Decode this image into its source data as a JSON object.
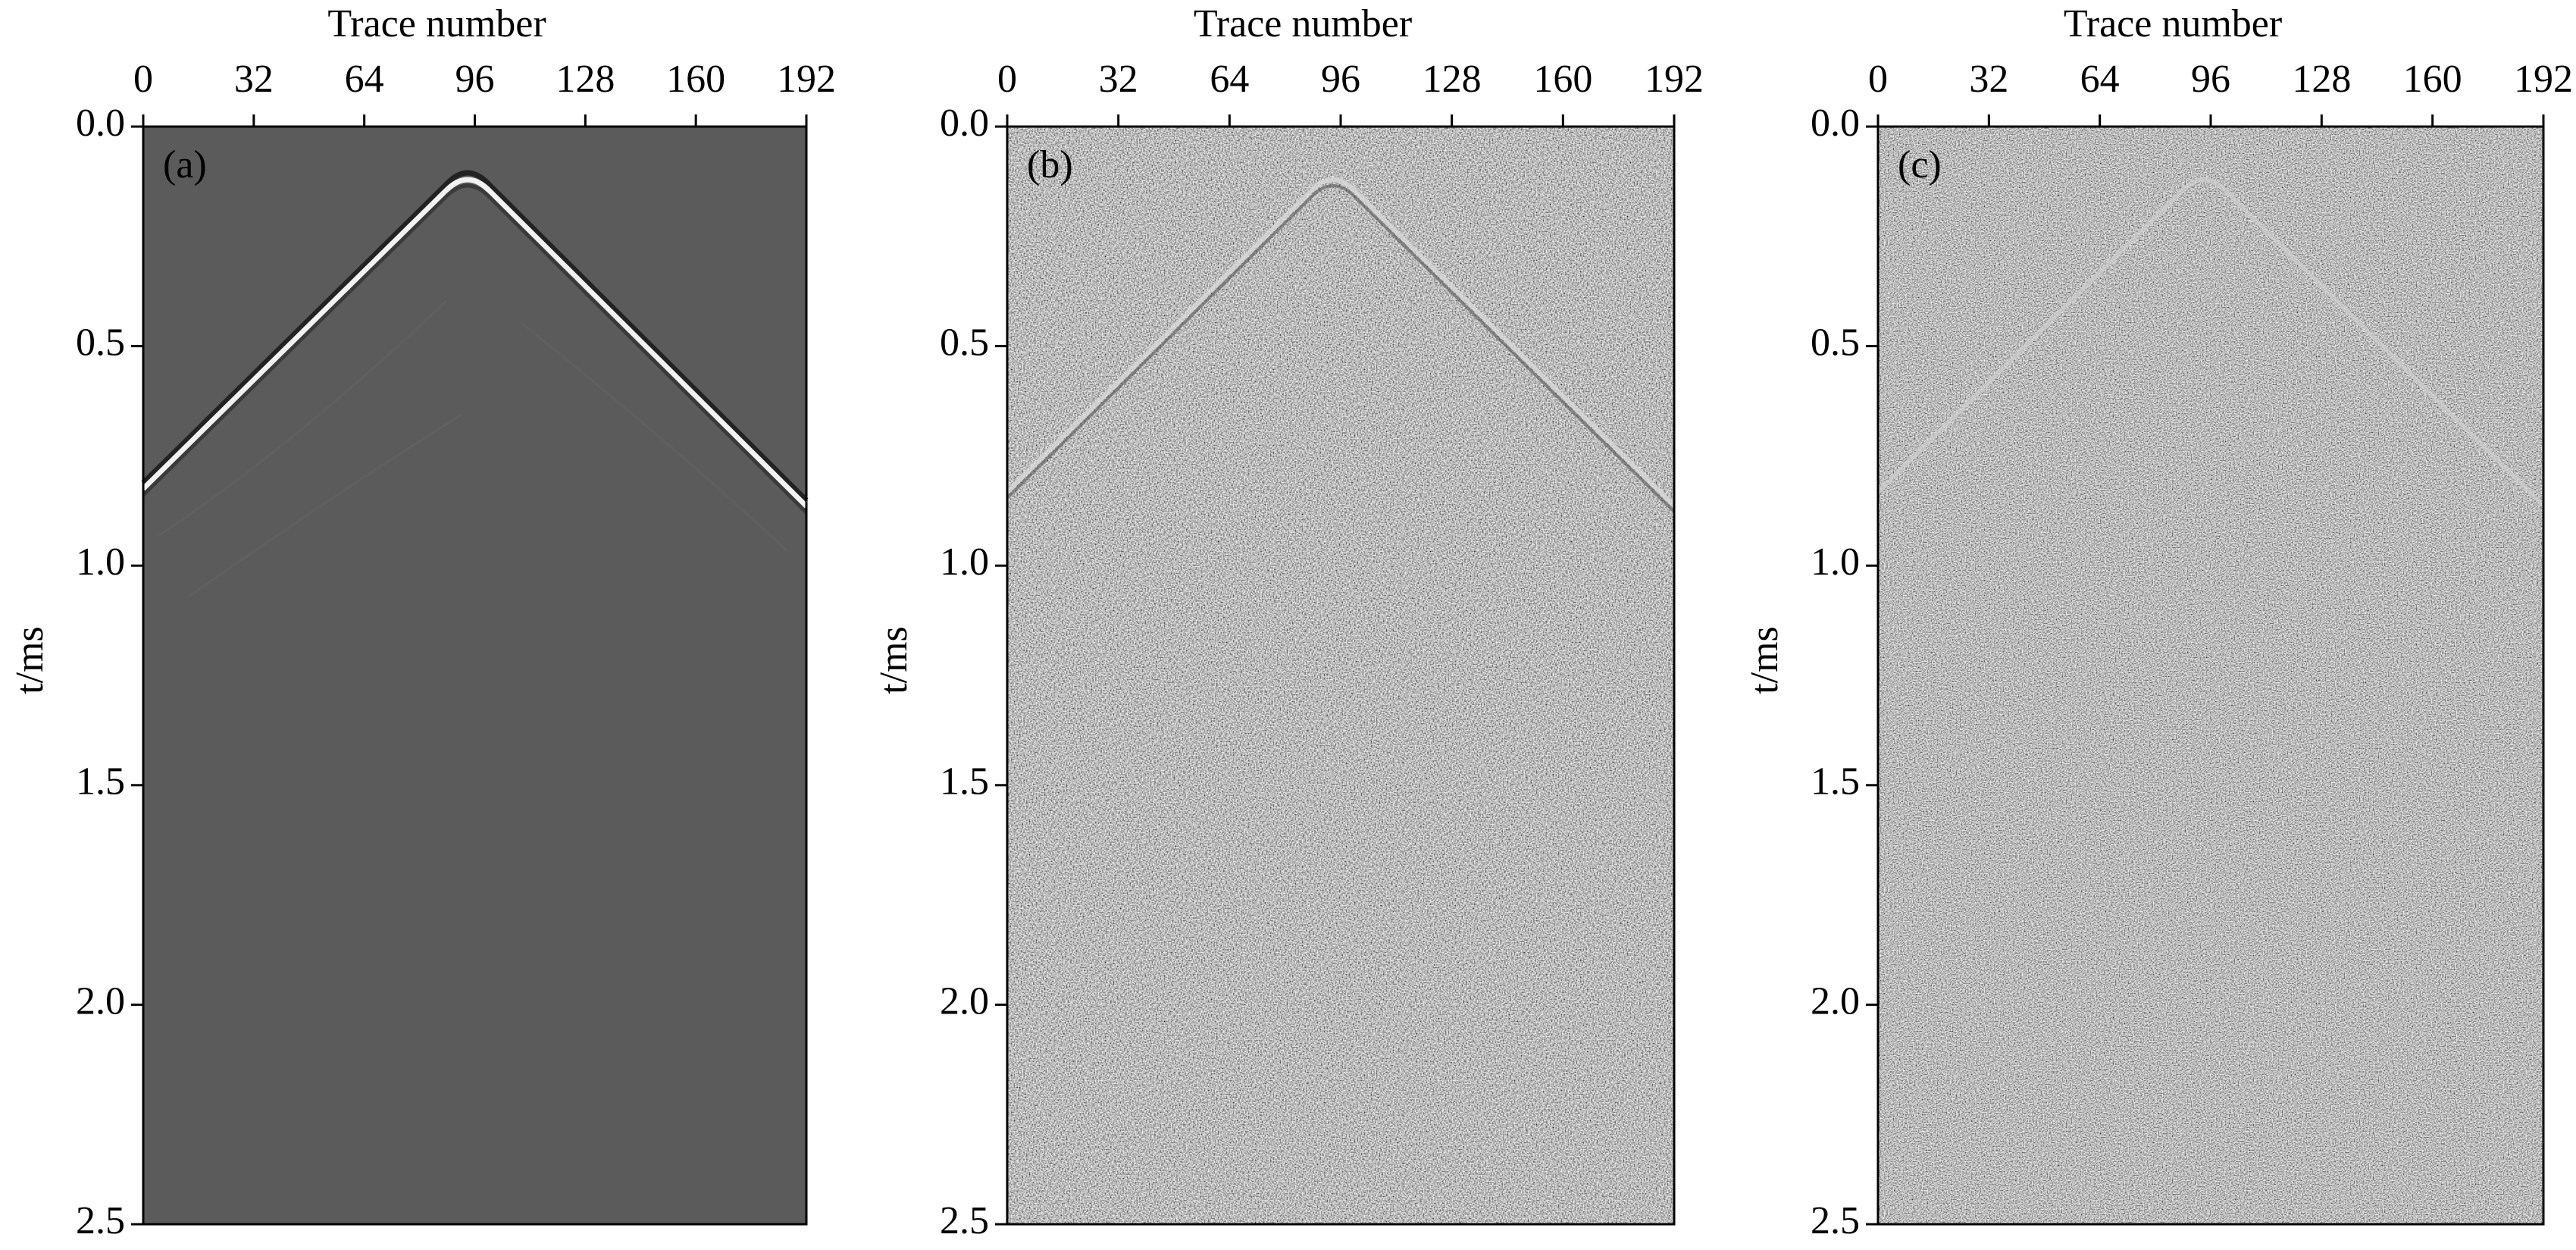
{
  "chart_data": [
    {
      "type": "heatmap",
      "annotation": "(a)",
      "x_label": "Trace number",
      "y_label": "t/ms",
      "xlim": [
        0,
        192
      ],
      "xticks": [
        0,
        32,
        64,
        96,
        128,
        160,
        192
      ],
      "ylim": [
        0,
        2.5
      ],
      "yticks": [
        {
          "value": 0,
          "label": "0.0"
        },
        0.5,
        {
          "value": 1,
          "label": "1.0"
        },
        1.5,
        {
          "value": 2,
          "label": "2.0"
        },
        2.5
      ]
    },
    {
      "type": "heatmap",
      "annotation": "(b)",
      "x_label": "Trace number",
      "y_label": "t/ms",
      "xlim": [
        0,
        192
      ],
      "xticks": [
        0,
        32,
        64,
        96,
        128,
        160,
        192
      ],
      "ylim": [
        0,
        2.5
      ],
      "yticks": [
        {
          "value": 0,
          "label": "0.0"
        },
        0.5,
        {
          "value": 1,
          "label": "1.0"
        },
        1.5,
        {
          "value": 2,
          "label": "2.0"
        },
        2.5
      ]
    },
    {
      "type": "heatmap",
      "annotation": "(c)",
      "x_label": "Trace number",
      "y_label": "t/ms",
      "xlim": [
        0,
        192
      ],
      "xticks": [
        0,
        32,
        64,
        96,
        128,
        160,
        192
      ],
      "ylim": [
        0,
        2.5
      ],
      "yticks": [
        {
          "value": 0,
          "label": "0.0"
        },
        0.5,
        {
          "value": 1,
          "label": "1.0"
        },
        1.5,
        {
          "value": 2,
          "label": "2.0"
        },
        2.5
      ]
    }
  ]
}
